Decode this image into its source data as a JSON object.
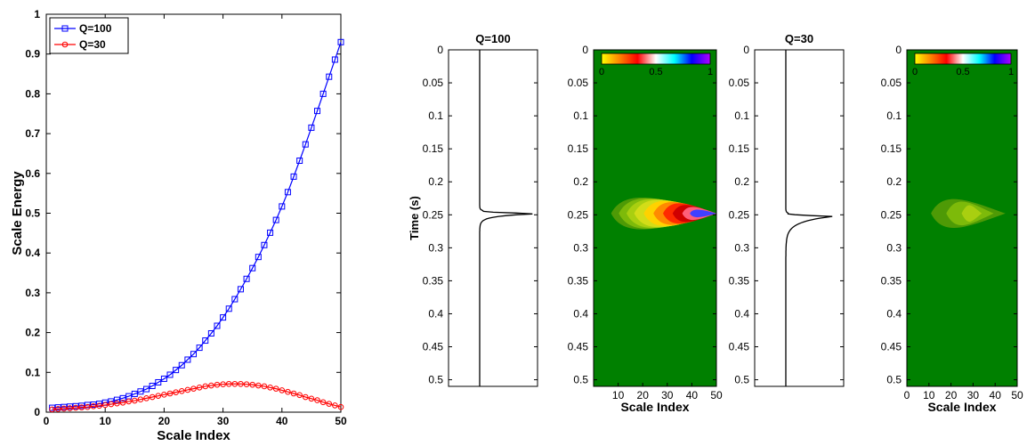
{
  "chart_data": [
    {
      "type": "line",
      "title": "",
      "xlabel": "Scale Index",
      "ylabel": "Scale Energy",
      "xlim": [
        0,
        50
      ],
      "ylim": [
        0,
        1
      ],
      "xticks": [
        0,
        10,
        20,
        30,
        40,
        50
      ],
      "yticks": [
        0,
        0.1,
        0.2,
        0.3,
        0.4,
        0.5,
        0.6,
        0.7,
        0.8,
        0.9,
        1
      ],
      "grid": false,
      "legend": "top-left",
      "series": [
        {
          "name": "Q=100",
          "color": "#0000ff",
          "marker": "square",
          "x": [
            1,
            2,
            3,
            4,
            5,
            6,
            7,
            8,
            9,
            10,
            11,
            12,
            13,
            14,
            15,
            16,
            17,
            18,
            19,
            20,
            21,
            22,
            23,
            24,
            25,
            26,
            27,
            28,
            29,
            30,
            31,
            32,
            33,
            34,
            35,
            36,
            37,
            38,
            39,
            40,
            41,
            42,
            43,
            44,
            45,
            46,
            47,
            48,
            49,
            50
          ],
          "values": [
            0.011,
            0.012,
            0.013,
            0.014,
            0.015,
            0.016,
            0.018,
            0.019,
            0.021,
            0.024,
            0.027,
            0.031,
            0.035,
            0.04,
            0.046,
            0.052,
            0.058,
            0.066,
            0.075,
            0.084,
            0.094,
            0.106,
            0.118,
            0.132,
            0.146,
            0.162,
            0.18,
            0.198,
            0.217,
            0.238,
            0.26,
            0.284,
            0.309,
            0.335,
            0.362,
            0.39,
            0.42,
            0.451,
            0.483,
            0.517,
            0.553,
            0.592,
            0.632,
            0.673,
            0.715,
            0.757,
            0.8,
            0.843,
            0.886,
            0.93
          ]
        },
        {
          "name": "Q=30",
          "color": "#ff0000",
          "marker": "circle",
          "x": [
            1,
            2,
            3,
            4,
            5,
            6,
            7,
            8,
            9,
            10,
            11,
            12,
            13,
            14,
            15,
            16,
            17,
            18,
            19,
            20,
            21,
            22,
            23,
            24,
            25,
            26,
            27,
            28,
            29,
            30,
            31,
            32,
            33,
            34,
            35,
            36,
            37,
            38,
            39,
            40,
            41,
            42,
            43,
            44,
            45,
            46,
            47,
            48,
            49,
            50
          ],
          "values": [
            0.007,
            0.008,
            0.009,
            0.01,
            0.011,
            0.012,
            0.013,
            0.015,
            0.016,
            0.018,
            0.02,
            0.022,
            0.024,
            0.027,
            0.029,
            0.032,
            0.035,
            0.038,
            0.041,
            0.044,
            0.047,
            0.05,
            0.053,
            0.056,
            0.059,
            0.062,
            0.065,
            0.067,
            0.069,
            0.07,
            0.071,
            0.071,
            0.071,
            0.07,
            0.069,
            0.067,
            0.065,
            0.062,
            0.059,
            0.055,
            0.051,
            0.047,
            0.043,
            0.038,
            0.034,
            0.03,
            0.025,
            0.021,
            0.017,
            0.013
          ]
        }
      ]
    },
    {
      "type": "line",
      "title": "Q=100",
      "xlabel": "",
      "ylabel": "Time (s)",
      "ylim": [
        0,
        0.51
      ],
      "y_reversed": true,
      "yticks": [
        0,
        0.05,
        0.1,
        0.15,
        0.2,
        0.25,
        0.3,
        0.35,
        0.4,
        0.45,
        0.5
      ],
      "series": [
        {
          "color": "#000000",
          "trace": "spike",
          "peak_time": 0.248,
          "peak_amplitude": 0.7,
          "decay_width": 0.015
        }
      ]
    },
    {
      "type": "heatmap",
      "title": "",
      "xlabel": "Scale Index",
      "ylabel": "",
      "xlim": [
        0,
        50
      ],
      "ylim": [
        0,
        0.51
      ],
      "xticks": [
        10,
        20,
        30,
        40,
        50
      ],
      "yticks": [
        0,
        0.05,
        0.1,
        0.15,
        0.2,
        0.25,
        0.3,
        0.35,
        0.4,
        0.45,
        0.5
      ],
      "background": "#008000",
      "colorbar": {
        "ticks": [
          "0",
          "0.5",
          "1"
        ],
        "range": [
          0,
          1
        ]
      },
      "blob": {
        "center_time": 0.248,
        "peak_scale": 50,
        "peak_value": 0.92
      }
    },
    {
      "type": "line",
      "title": "Q=30",
      "xlabel": "",
      "ylabel": "",
      "ylim": [
        0,
        0.51
      ],
      "y_reversed": true,
      "yticks": [
        0,
        0.05,
        0.1,
        0.15,
        0.2,
        0.25,
        0.3,
        0.35,
        0.4,
        0.45,
        0.5
      ],
      "series": [
        {
          "color": "#000000",
          "trace": "spike",
          "peak_time": 0.252,
          "peak_amplitude": 0.55,
          "decay_width": 0.035
        }
      ]
    },
    {
      "type": "heatmap",
      "title": "",
      "xlabel": "Scale Index",
      "ylabel": "",
      "xlim": [
        0,
        50
      ],
      "ylim": [
        0,
        0.51
      ],
      "xticks": [
        0,
        10,
        20,
        30,
        40,
        50
      ],
      "yticks": [
        0,
        0.05,
        0.1,
        0.15,
        0.2,
        0.25,
        0.3,
        0.35,
        0.4,
        0.45,
        0.5
      ],
      "background": "#008000",
      "colorbar": {
        "ticks": [
          "0",
          "0.5",
          "1"
        ],
        "range": [
          0,
          1
        ]
      },
      "blob": {
        "center_time": 0.248,
        "peak_scale": 30,
        "peak_value": 0.3
      }
    }
  ]
}
